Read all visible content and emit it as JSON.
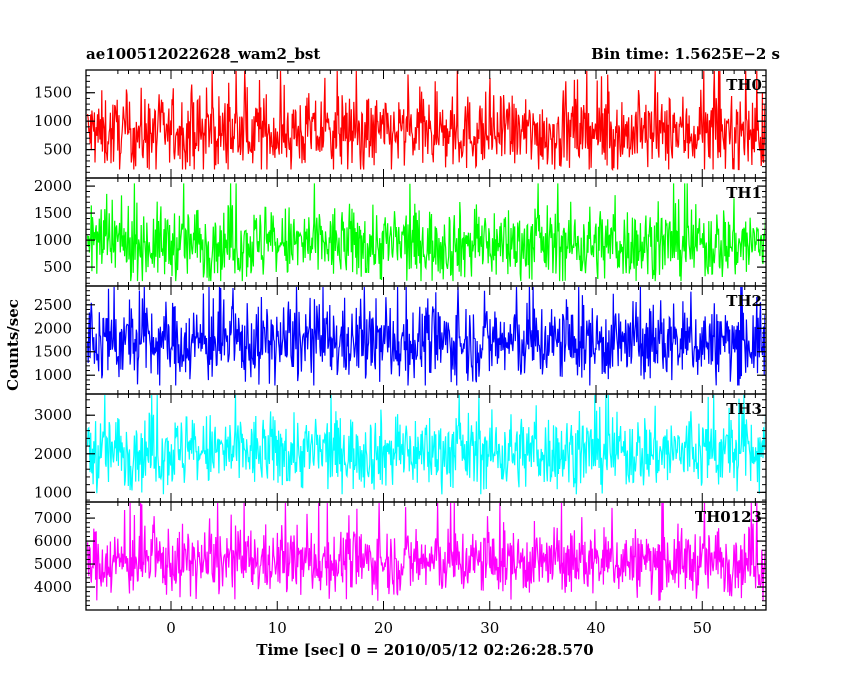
{
  "header": {
    "title": "ae100512022628_wam2_bst",
    "bin_time": "Bin time: 1.5625E−2 s"
  },
  "axes": {
    "xlabel": "Time [sec] 0 = 2010/05/12 02:26:28.570",
    "ylabel": "Counts/sec"
  },
  "chart_data": {
    "type": "line",
    "x": {
      "range": [
        -8,
        56
      ],
      "tick_values": [
        0,
        10,
        20,
        30,
        40,
        50
      ],
      "tick_labels": [
        "0",
        "10",
        "20",
        "30",
        "40",
        "50"
      ],
      "bin_width": 0.015625
    },
    "panels": [
      {
        "name": "TH0",
        "color": "#ff0000",
        "ylim": [
          0,
          1900
        ],
        "mean": 790,
        "noise": 330,
        "min": 150,
        "max": 1900,
        "tick_values": [
          500,
          1000,
          1500
        ],
        "tick_labels": [
          "500",
          "1000",
          "1500"
        ]
      },
      {
        "name": "TH1",
        "color": "#00ff00",
        "ylim": [
          150,
          2150
        ],
        "mean": 930,
        "noise": 340,
        "min": 240,
        "max": 2050,
        "tick_values": [
          500,
          1000,
          1500,
          2000
        ],
        "tick_labels": [
          "500",
          "1000",
          "1500",
          "2000"
        ]
      },
      {
        "name": "TH2",
        "color": "#0000ff",
        "ylim": [
          600,
          2900
        ],
        "mean": 1700,
        "noise": 420,
        "min": 780,
        "max": 2900,
        "tick_values": [
          1000,
          1500,
          2000,
          2500
        ],
        "tick_labels": [
          "1000",
          "1500",
          "2000",
          "2500"
        ]
      },
      {
        "name": "TH3",
        "color": "#00ffff",
        "ylim": [
          750,
          3550
        ],
        "mean": 2050,
        "noise": 480,
        "min": 950,
        "max": 3550,
        "tick_values": [
          1000,
          2000,
          3000
        ],
        "tick_labels": [
          "1000",
          "2000",
          "3000"
        ]
      },
      {
        "name": "TH0123",
        "color": "#ff00ff",
        "ylim": [
          3000,
          7700
        ],
        "mean": 5100,
        "noise": 720,
        "min": 3400,
        "max": 7700,
        "tick_values": [
          4000,
          5000,
          6000,
          7000
        ],
        "tick_labels": [
          "4000",
          "5000",
          "6000",
          "7000"
        ]
      }
    ]
  }
}
